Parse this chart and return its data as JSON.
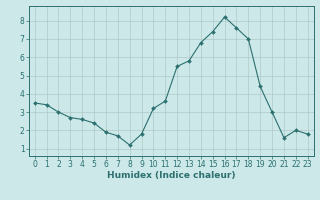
{
  "x": [
    0,
    1,
    2,
    3,
    4,
    5,
    6,
    7,
    8,
    9,
    10,
    11,
    12,
    13,
    14,
    15,
    16,
    17,
    18,
    19,
    20,
    21,
    22,
    23
  ],
  "y": [
    3.5,
    3.4,
    3.0,
    2.7,
    2.6,
    2.4,
    1.9,
    1.7,
    1.2,
    1.8,
    3.2,
    3.6,
    5.5,
    5.8,
    6.8,
    7.4,
    8.2,
    7.6,
    7.0,
    4.4,
    3.0,
    1.6,
    2.0,
    1.8
  ],
  "line_color": "#2d7070",
  "marker": "D",
  "marker_size": 2.0,
  "bg_color": "#cce8e8",
  "grid_color": "#b0c8c8",
  "xlabel": "Humidex (Indice chaleur)",
  "xlabel_fontsize": 6.5,
  "tick_fontsize": 5.5,
  "ylim": [
    0.6,
    8.8
  ],
  "xlim": [
    -0.5,
    23.5
  ],
  "yticks": [
    1,
    2,
    3,
    4,
    5,
    6,
    7,
    8
  ],
  "xticks": [
    0,
    1,
    2,
    3,
    4,
    5,
    6,
    7,
    8,
    9,
    10,
    11,
    12,
    13,
    14,
    15,
    16,
    17,
    18,
    19,
    20,
    21,
    22,
    23
  ]
}
